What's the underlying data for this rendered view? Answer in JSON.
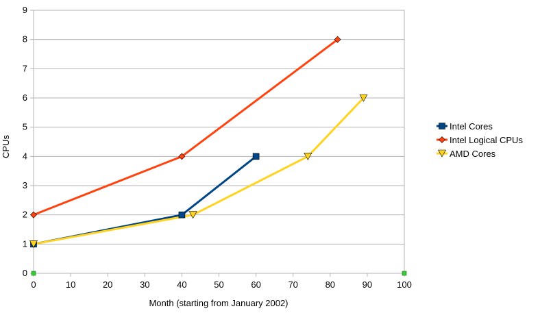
{
  "chart_data": {
    "type": "line",
    "title": "",
    "xlabel": "Month (starting from January 2002)",
    "ylabel": "CPUs",
    "xlim": [
      0,
      100
    ],
    "ylim": [
      0,
      9
    ],
    "xticks": [
      0,
      10,
      20,
      30,
      40,
      50,
      60,
      70,
      80,
      90,
      100
    ],
    "yticks": [
      0,
      1,
      2,
      3,
      4,
      5,
      6,
      7,
      8,
      9
    ],
    "grid": "horizontal",
    "legend_position": "right",
    "series": [
      {
        "name": "Intel Cores",
        "color": "#004586",
        "marker": "square",
        "x": [
          0,
          40,
          60
        ],
        "y": [
          1,
          2,
          4
        ]
      },
      {
        "name": "Intel Logical CPUs",
        "color": "#ff420e",
        "marker": "diamond",
        "x": [
          0,
          40,
          82
        ],
        "y": [
          2,
          4,
          8
        ]
      },
      {
        "name": "AMD Cores",
        "color": "#ffd320",
        "marker": "triangle-down",
        "x": [
          0,
          43,
          74,
          89
        ],
        "y": [
          1,
          2,
          4,
          6
        ]
      }
    ],
    "extra_points": {
      "color": "#33cc33",
      "marker": "square",
      "x": [
        0,
        100
      ],
      "y": [
        0,
        0
      ]
    }
  }
}
